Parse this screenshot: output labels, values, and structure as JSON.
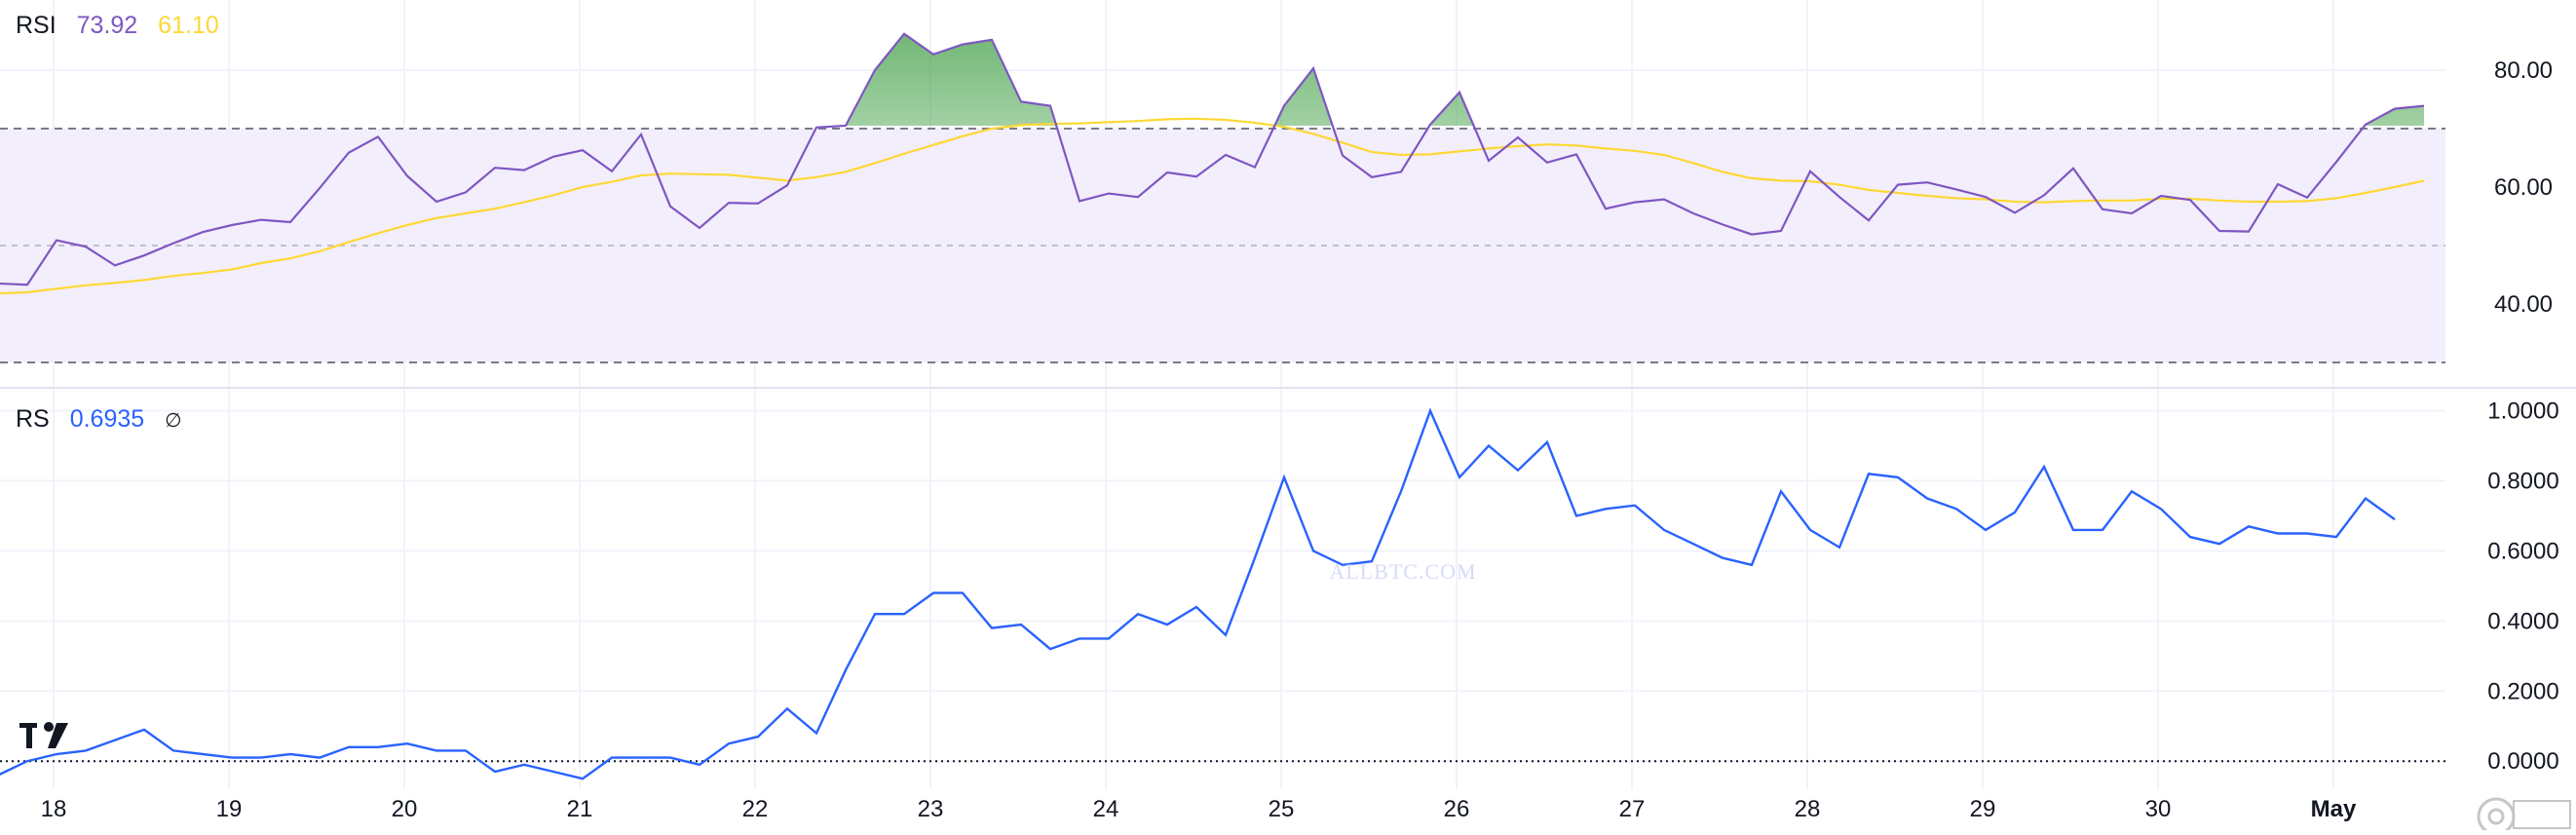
{
  "colors": {
    "rsi_line": "#7e57c2",
    "rsi_ma": "#fdd835",
    "rs_line": "#2962ff",
    "band_fill": "#f3eefc",
    "grid": "#f0f3fa",
    "axis_text": "#131722"
  },
  "legend_rsi": {
    "name": "RSI",
    "value": "73.92",
    "ma_value": "61.10"
  },
  "legend_rs": {
    "name": "RS",
    "value": "0.6935",
    "symbol": "∅"
  },
  "watermark": "ALLBTC.COM",
  "logo": "TV",
  "chart_data": [
    {
      "type": "line",
      "panel": "rsi",
      "x_labels": [
        "18",
        "19",
        "20",
        "21",
        "22",
        "23",
        "24",
        "25",
        "26",
        "27",
        "28",
        "29",
        "30",
        "May"
      ],
      "y_ticks": [
        "80.00",
        "60.00",
        "40.00"
      ],
      "ylim": [
        27,
        92
      ],
      "band": {
        "upper": 70,
        "middle": 50,
        "lower": 30
      },
      "series": [
        {
          "values": [
            43.5,
            43.3,
            50.9,
            49.8,
            46.6,
            48.3,
            50.4,
            52.3,
            53.5,
            54.4,
            54.0,
            59.8,
            65.9,
            68.6,
            61.9,
            57.5,
            59.1,
            63.3,
            62.9,
            65.2,
            66.3,
            62.7,
            69.0,
            56.7,
            53.0,
            57.3,
            57.2,
            60.3,
            70.2,
            70.5,
            80.0,
            86.2,
            82.7,
            84.4,
            85.2,
            74.6,
            73.9,
            57.6,
            58.9,
            58.3,
            62.5,
            61.8,
            65.5,
            63.4,
            73.9,
            80.3,
            65.4,
            61.7,
            62.6,
            70.7,
            76.2,
            64.5,
            68.5,
            64.2,
            65.6,
            56.3,
            57.4,
            57.9,
            55.5,
            53.6,
            51.9,
            52.5,
            62.7,
            58.3,
            54.3,
            60.4,
            60.8,
            59.6,
            58.3,
            55.6,
            58.6,
            63.2,
            56.2,
            55.5,
            58.5,
            57.8,
            52.5,
            52.4,
            60.5,
            58.2,
            64.3,
            70.7,
            73.4,
            73.9
          ]
        },
        {
          "values": [
            41.8,
            42.0,
            42.6,
            43.2,
            43.6,
            44.1,
            44.8,
            45.3,
            45.9,
            47.0,
            47.8,
            49.0,
            50.6,
            52.1,
            53.5,
            54.7,
            55.5,
            56.3,
            57.4,
            58.6,
            60.0,
            60.9,
            62.0,
            62.3,
            62.2,
            62.1,
            61.6,
            61.1,
            61.7,
            62.6,
            64.1,
            65.7,
            67.2,
            68.7,
            70.0,
            70.6,
            70.8,
            70.9,
            71.1,
            71.3,
            71.6,
            71.7,
            71.5,
            71.0,
            70.3,
            69.1,
            67.6,
            66.0,
            65.5,
            65.6,
            66.1,
            66.6,
            67.0,
            67.3,
            67.1,
            66.6,
            66.2,
            65.5,
            64.1,
            62.6,
            61.5,
            61.1,
            61.0,
            60.4,
            59.5,
            59.0,
            58.5,
            58.1,
            57.9,
            57.5,
            57.4,
            57.6,
            57.7,
            57.7,
            58.0,
            58.0,
            57.7,
            57.5,
            57.5,
            57.6,
            58.1,
            59.0,
            60.0,
            61.1
          ]
        }
      ]
    },
    {
      "type": "line",
      "panel": "rs",
      "x_labels": [
        "18",
        "19",
        "20",
        "21",
        "22",
        "23",
        "24",
        "25",
        "26",
        "27",
        "28",
        "29",
        "30",
        "May"
      ],
      "y_ticks": [
        "1.0000",
        "0.8000",
        "0.6000",
        "0.4000",
        "0.2000",
        "0.0000"
      ],
      "ylim": [
        -0.08,
        1.06
      ],
      "baseline": 0,
      "series": [
        {
          "values": [
            -0.04,
            0.0,
            0.02,
            0.03,
            0.06,
            0.09,
            0.03,
            0.02,
            0.01,
            0.01,
            0.02,
            0.01,
            0.04,
            0.04,
            0.05,
            0.03,
            0.03,
            -0.03,
            -0.01,
            -0.03,
            -0.05,
            0.01,
            0.01,
            0.01,
            -0.01,
            0.05,
            0.07,
            0.15,
            0.08,
            0.26,
            0.42,
            0.42,
            0.48,
            0.48,
            0.38,
            0.39,
            0.32,
            0.35,
            0.35,
            0.42,
            0.39,
            0.44,
            0.36,
            0.58,
            0.81,
            0.6,
            0.56,
            0.57,
            0.77,
            1.0,
            0.81,
            0.9,
            0.83,
            0.91,
            0.7,
            0.72,
            0.73,
            0.66,
            0.62,
            0.58,
            0.56,
            0.77,
            0.66,
            0.61,
            0.82,
            0.81,
            0.75,
            0.72,
            0.66,
            0.71,
            0.84,
            0.66,
            0.66,
            0.77,
            0.72,
            0.64,
            0.62,
            0.67,
            0.65,
            0.65,
            0.64,
            0.75,
            0.69
          ]
        }
      ]
    }
  ]
}
